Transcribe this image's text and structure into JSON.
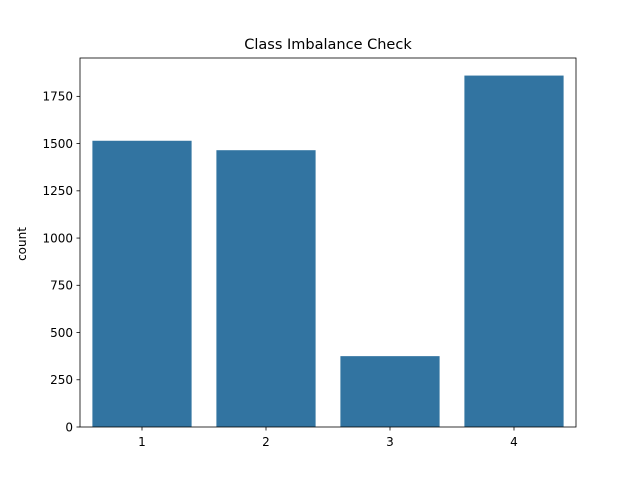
{
  "chart_data": {
    "type": "bar",
    "title": "Class Imbalance Check",
    "xlabel": "",
    "ylabel": "count",
    "categories": [
      "1",
      "2",
      "3",
      "4"
    ],
    "values": [
      1515,
      1465,
      375,
      1860
    ],
    "ylim": [
      0,
      1953
    ],
    "yticks": [
      0,
      250,
      500,
      750,
      1000,
      1250,
      1500,
      1750
    ],
    "grid": false,
    "bar_color": "#3274a1"
  }
}
